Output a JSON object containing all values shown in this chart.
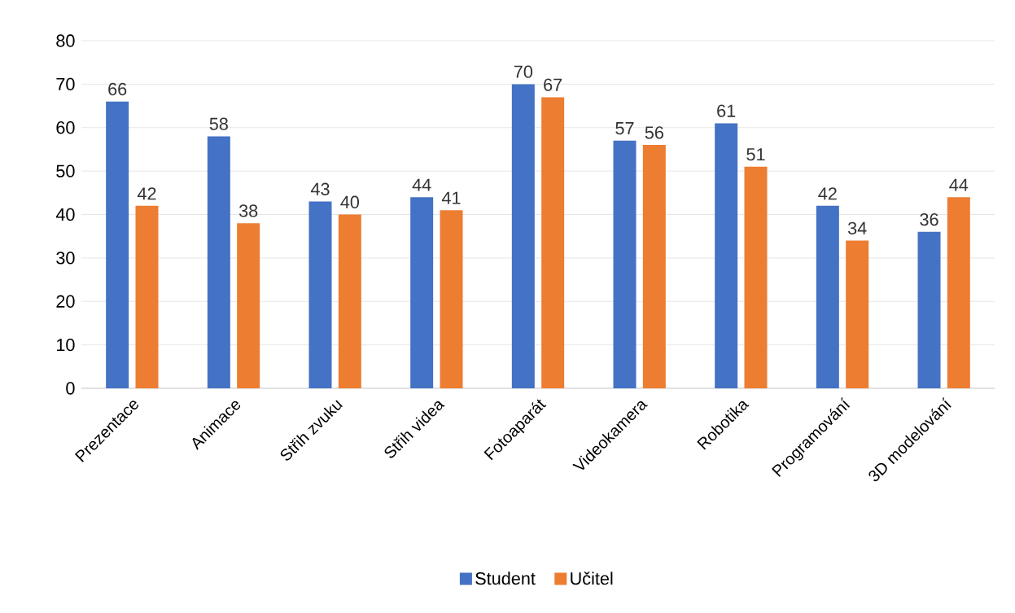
{
  "chart_data": {
    "type": "bar",
    "categories": [
      "Prezentace",
      "Animace",
      "Střih zvuku",
      "Střih videa",
      "Fotoaparát",
      "Videokamera",
      "Robotika",
      "Programování",
      "3D modelování"
    ],
    "series": [
      {
        "name": "Student",
        "color": "#4472c4",
        "values": [
          66,
          58,
          43,
          44,
          70,
          57,
          61,
          42,
          36
        ]
      },
      {
        "name": "Učitel",
        "color": "#ed7d31",
        "values": [
          42,
          38,
          40,
          41,
          67,
          56,
          51,
          34,
          44
        ]
      }
    ],
    "ylim": [
      0,
      80
    ],
    "yticks": [
      0,
      10,
      20,
      30,
      40,
      50,
      60,
      70,
      80
    ],
    "grid": "y",
    "legend": "bottom",
    "data_labels": true
  }
}
